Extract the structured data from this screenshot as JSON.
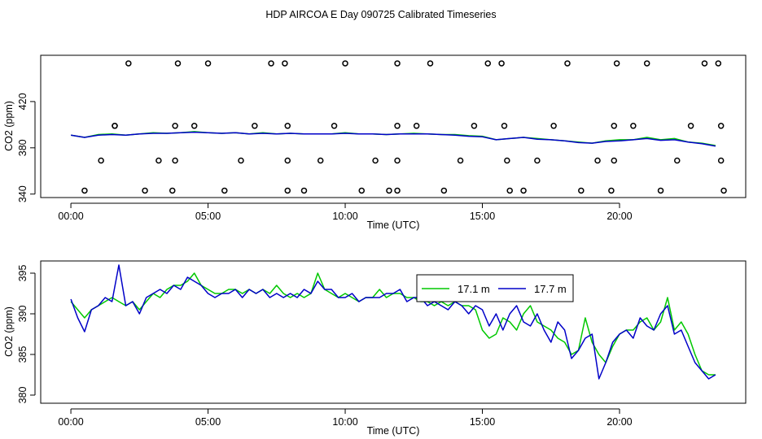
{
  "chart_data": [
    {
      "type": "line",
      "title": "HDP AIRCOA E  Day 090725  Calibrated Timeseries",
      "xlabel": "Time (UTC)",
      "ylabel": "CO2 (ppm)",
      "xlim": [
        -1.1,
        24.6
      ],
      "ylim": [
        337,
        460
      ],
      "xticks": [
        0,
        5,
        10,
        15,
        20
      ],
      "xtick_labels": [
        "00:00",
        "05:00",
        "10:00",
        "15:00",
        "20:00"
      ],
      "yticks": [
        340,
        380,
        420
      ],
      "ytick_labels": [
        "340",
        "380",
        "420"
      ],
      "grid": false,
      "colors": [
        "#00c800",
        "#0000c8"
      ],
      "series": [
        {
          "color": "#00c800",
          "x": [
            0.0,
            0.5,
            1.0,
            1.5,
            2.0,
            2.5,
            3.0,
            3.5,
            4.0,
            4.5,
            5.0,
            5.5,
            6.0,
            6.5,
            7.0,
            7.5,
            8.0,
            8.5,
            9.0,
            9.5,
            10.0,
            10.5,
            11.0,
            11.5,
            12.0,
            12.5,
            13.0,
            13.5,
            14.0,
            14.5,
            15.0,
            15.5,
            16.0,
            16.5,
            17.0,
            17.5,
            18.0,
            18.5,
            19.0,
            19.5,
            20.0,
            20.5,
            21.0,
            21.5,
            22.0,
            22.5,
            23.0,
            23.5
          ],
          "y": [
            391,
            389,
            391.5,
            392,
            391,
            392,
            393,
            392.5,
            393,
            394,
            393,
            392.5,
            393,
            392,
            393,
            392,
            392.5,
            392,
            392,
            392,
            393,
            392,
            392,
            391.5,
            392,
            392.5,
            392,
            391.5,
            391.5,
            390.5,
            390,
            387,
            388,
            389,
            388,
            387,
            386,
            385,
            384,
            386,
            387,
            387,
            389,
            387,
            388,
            385,
            384,
            382
          ]
        },
        {
          "color": "#0000c8",
          "x": [
            0.0,
            0.5,
            1.0,
            1.5,
            2.0,
            2.5,
            3.0,
            3.5,
            4.0,
            4.5,
            5.0,
            5.5,
            6.0,
            6.5,
            7.0,
            7.5,
            8.0,
            8.5,
            9.0,
            9.5,
            10.0,
            10.5,
            11.0,
            11.5,
            12.0,
            12.5,
            13.0,
            13.5,
            14.0,
            14.5,
            15.0,
            15.5,
            16.0,
            16.5,
            17.0,
            17.5,
            18.0,
            18.5,
            19.0,
            19.5,
            20.0,
            20.5,
            21.0,
            21.5,
            22.0,
            22.5,
            23.0,
            23.5
          ],
          "y": [
            391,
            389,
            391,
            391.5,
            391,
            392,
            392.5,
            392.5,
            393,
            393.5,
            393,
            392.5,
            393,
            392,
            392.5,
            392,
            392.5,
            392,
            392,
            392,
            392.5,
            392,
            392,
            391.5,
            392,
            392,
            392,
            391.5,
            391,
            390,
            389.5,
            387,
            388,
            389,
            387.5,
            387,
            386,
            384.5,
            384,
            385.5,
            386,
            387,
            388,
            386.5,
            387,
            385,
            383.5,
            381.5
          ]
        }
      ],
      "points": {
        "x": [
          0.5,
          1.1,
          1.6,
          1.6,
          2.1,
          2.7,
          3.2,
          3.7,
          3.8,
          3.8,
          3.9,
          4.5,
          5.0,
          5.6,
          6.2,
          6.7,
          7.3,
          7.8,
          7.9,
          7.9,
          7.9,
          8.5,
          9.1,
          9.6,
          10.0,
          10.6,
          11.1,
          11.6,
          11.9,
          11.9,
          11.9,
          11.9,
          12.6,
          13.1,
          13.6,
          14.2,
          14.7,
          15.2,
          15.7,
          15.8,
          15.9,
          16.0,
          16.5,
          17.0,
          17.6,
          18.1,
          18.6,
          19.2,
          19.7,
          19.8,
          19.8,
          19.9,
          20.5,
          21.0,
          21.5,
          22.1,
          22.6,
          23.1,
          23.6,
          23.7,
          23.7,
          23.8
        ],
        "y": [
          343,
          369,
          399,
          399,
          453,
          343,
          369,
          343,
          369,
          399,
          453,
          399,
          453,
          343,
          369,
          399,
          453,
          453,
          399,
          369,
          343,
          343,
          369,
          399,
          453,
          343,
          369,
          343,
          369,
          399,
          453,
          343,
          399,
          453,
          343,
          369,
          399,
          453,
          453,
          399,
          369,
          343,
          343,
          369,
          399,
          453,
          343,
          369,
          343,
          369,
          399,
          453,
          399,
          453,
          343,
          369,
          399,
          453,
          453,
          399,
          369,
          343
        ]
      }
    },
    {
      "type": "line",
      "xlabel": "Time (UTC)",
      "ylabel": "CO2 (ppm)",
      "xlim": [
        -1.1,
        24.6
      ],
      "ylim": [
        379,
        396.5
      ],
      "xticks": [
        0,
        5,
        10,
        15,
        20
      ],
      "xtick_labels": [
        "00:00",
        "05:00",
        "10:00",
        "15:00",
        "20:00"
      ],
      "yticks": [
        380,
        385,
        390,
        395
      ],
      "ytick_labels": [
        "380",
        "385",
        "390",
        "395"
      ],
      "grid": false,
      "legend": "top-right",
      "series": [
        {
          "name": "17.1 m",
          "color": "#00c800",
          "x": [
            0.0,
            0.25,
            0.5,
            0.75,
            1.0,
            1.25,
            1.5,
            1.75,
            2.0,
            2.25,
            2.5,
            2.75,
            3.0,
            3.25,
            3.5,
            3.75,
            4.0,
            4.25,
            4.5,
            4.75,
            5.0,
            5.25,
            5.5,
            5.75,
            6.0,
            6.25,
            6.5,
            6.75,
            7.0,
            7.25,
            7.5,
            7.75,
            8.0,
            8.25,
            8.5,
            8.75,
            9.0,
            9.25,
            9.5,
            9.75,
            10.0,
            10.25,
            10.5,
            10.75,
            11.0,
            11.25,
            11.5,
            11.75,
            12.0,
            12.25,
            12.5,
            12.75,
            13.0,
            13.25,
            13.5,
            13.75,
            14.0,
            14.25,
            14.5,
            14.75,
            15.0,
            15.25,
            15.5,
            15.75,
            16.0,
            16.25,
            16.5,
            16.75,
            17.0,
            17.25,
            17.5,
            17.75,
            18.0,
            18.25,
            18.5,
            18.75,
            19.0,
            19.25,
            19.5,
            19.75,
            20.0,
            20.25,
            20.5,
            20.75,
            21.0,
            21.25,
            21.5,
            21.75,
            22.0,
            22.25,
            22.5,
            22.75,
            23.0,
            23.25,
            23.5
          ],
          "y": [
            391.5,
            390.5,
            389.5,
            390.5,
            391,
            391.5,
            392,
            391.5,
            391,
            391.5,
            390.5,
            391.5,
            392.5,
            392,
            393,
            393.5,
            393.5,
            394,
            395,
            393.5,
            393,
            392.5,
            392.5,
            393,
            393,
            392.5,
            393,
            392.5,
            393,
            392.5,
            393.5,
            392.5,
            392,
            392.5,
            392,
            392.5,
            395,
            393,
            392.5,
            392,
            392.5,
            392,
            391.5,
            392,
            392,
            393,
            392,
            392.5,
            392.5,
            392,
            392,
            391.5,
            391.5,
            391,
            391.5,
            391,
            391.5,
            391,
            391,
            390.5,
            388,
            387,
            387.5,
            389.5,
            389,
            388,
            390,
            391,
            389,
            388.5,
            388,
            387,
            386.5,
            385,
            385.5,
            389.5,
            386.5,
            385,
            384,
            386,
            387.5,
            388,
            388,
            389,
            389.5,
            388,
            389,
            392,
            388,
            389,
            387.5,
            385,
            383,
            382.5,
            382.5
          ]
        },
        {
          "name": "17.7 m",
          "color": "#0000c8",
          "x": [
            0.0,
            0.25,
            0.5,
            0.75,
            1.0,
            1.25,
            1.5,
            1.75,
            2.0,
            2.25,
            2.5,
            2.75,
            3.0,
            3.25,
            3.5,
            3.75,
            4.0,
            4.25,
            4.5,
            4.75,
            5.0,
            5.25,
            5.5,
            5.75,
            6.0,
            6.25,
            6.5,
            6.75,
            7.0,
            7.25,
            7.5,
            7.75,
            8.0,
            8.25,
            8.5,
            8.75,
            9.0,
            9.25,
            9.5,
            9.75,
            10.0,
            10.25,
            10.5,
            10.75,
            11.0,
            11.25,
            11.5,
            11.75,
            12.0,
            12.25,
            12.5,
            12.75,
            13.0,
            13.25,
            13.5,
            13.75,
            14.0,
            14.25,
            14.5,
            14.75,
            15.0,
            15.25,
            15.5,
            15.75,
            16.0,
            16.25,
            16.5,
            16.75,
            17.0,
            17.25,
            17.5,
            17.75,
            18.0,
            18.25,
            18.5,
            18.75,
            19.0,
            19.25,
            19.5,
            19.75,
            20.0,
            20.25,
            20.5,
            20.75,
            21.0,
            21.25,
            21.5,
            21.75,
            22.0,
            22.25,
            22.5,
            22.75,
            23.0,
            23.25,
            23.5
          ],
          "y": [
            391.8,
            389.5,
            387.8,
            390.5,
            391,
            392,
            391.5,
            396,
            391,
            391.5,
            390,
            392,
            392.5,
            393,
            392.5,
            393.5,
            393,
            394.5,
            394,
            393.5,
            392.5,
            392,
            392.5,
            392.5,
            393,
            392,
            393,
            392.5,
            393,
            392,
            392.5,
            392,
            392.5,
            392,
            393,
            392.5,
            394,
            393,
            393,
            392,
            392,
            392.5,
            391.5,
            392,
            392,
            392,
            392.5,
            392.5,
            393,
            391.5,
            392,
            392,
            391,
            391.5,
            391,
            390.5,
            391.5,
            391,
            390,
            391,
            390.5,
            388.5,
            390,
            388,
            390,
            391,
            389,
            388.5,
            390,
            388,
            386.5,
            389,
            388,
            384.5,
            385.5,
            387,
            387.5,
            382,
            384,
            386.5,
            387.5,
            388,
            387,
            389.5,
            388.5,
            388,
            390,
            391,
            387.5,
            388,
            386,
            384,
            383,
            382,
            382.5
          ]
        }
      ]
    }
  ]
}
